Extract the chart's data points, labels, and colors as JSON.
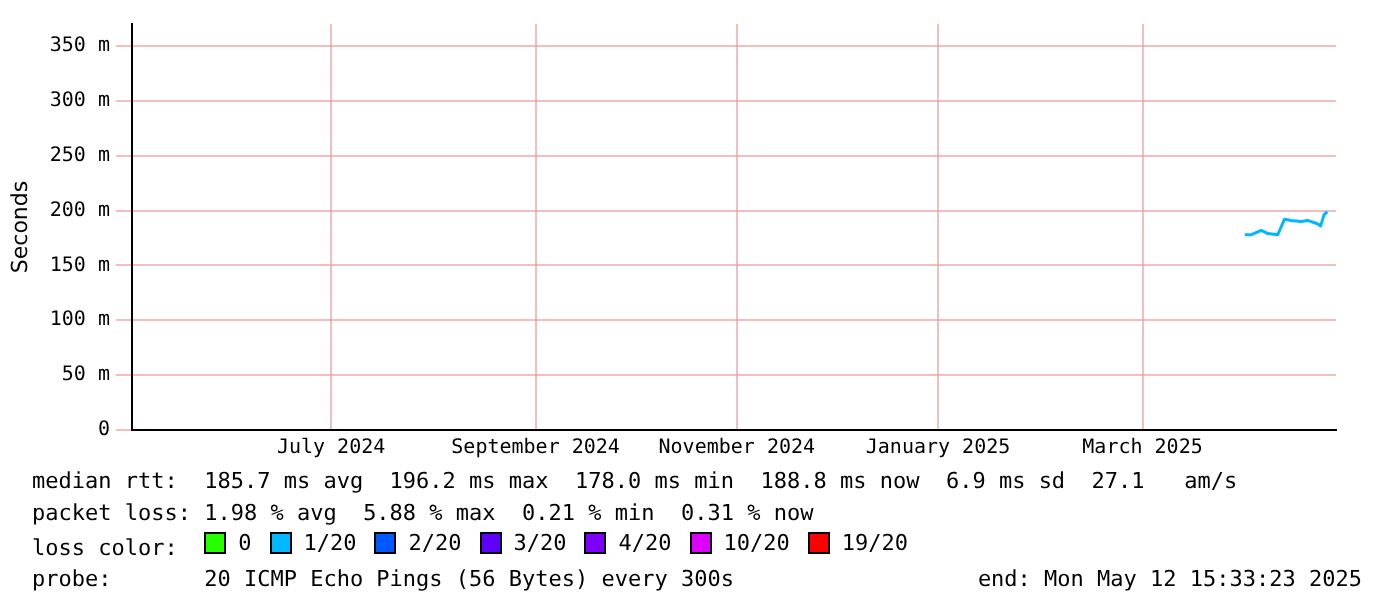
{
  "chart_data": {
    "type": "line",
    "ylabel": "Seconds",
    "xlim": [
      "2024-05-12T15:33",
      "2025-05-12T15:33"
    ],
    "xticks": [
      {
        "value": "2024-07-12",
        "label": "July 2024"
      },
      {
        "value": "2024-09-12",
        "label": "September 2024"
      },
      {
        "value": "2024-11-12",
        "label": "November 2024"
      },
      {
        "value": "2025-01-12",
        "label": "January 2025"
      },
      {
        "value": "2025-03-15",
        "label": "March 2025"
      }
    ],
    "ylim": [
      0,
      370
    ],
    "yticks": [
      0,
      {
        "value": 50,
        "label": "50 m"
      },
      {
        "value": 100,
        "label": "100 m"
      },
      {
        "value": 150,
        "label": "150 m"
      },
      {
        "value": 200,
        "label": "200 m"
      },
      {
        "value": 250,
        "label": "250 m"
      },
      {
        "value": 300,
        "label": "300 m"
      },
      {
        "value": 350,
        "label": "350 m"
      }
    ],
    "x": [
      "2025-04-15",
      "2025-04-17",
      "2025-04-20",
      "2025-04-22",
      "2025-04-25",
      "2025-04-26",
      "2025-04-27",
      "2025-04-29",
      "2025-05-02",
      "2025-05-04",
      "2025-05-07",
      "2025-05-08",
      "2025-05-09",
      "2025-05-10"
    ],
    "series": [
      {
        "name": "0",
        "color": "#26ff00",
        "values": [
          null,
          null,
          null,
          null,
          null,
          null,
          null,
          null,
          null,
          null,
          null,
          null,
          null,
          null
        ]
      },
      {
        "name": "1/20",
        "color": "#00b8ff",
        "values": [
          178,
          178,
          182,
          179,
          178,
          185,
          192,
          191,
          190,
          191,
          188,
          186,
          196,
          199
        ]
      },
      {
        "name": "2/20",
        "color": "#0059ff",
        "values": [
          null,
          null,
          null,
          null,
          null,
          null,
          null,
          null,
          null,
          null,
          null,
          null,
          null,
          null
        ]
      },
      {
        "name": "3/20",
        "color": "#5e00ff",
        "values": [
          null,
          null,
          null,
          null,
          null,
          null,
          null,
          null,
          null,
          null,
          null,
          null,
          null,
          null
        ]
      },
      {
        "name": "4/20",
        "color": "#7e00ff",
        "values": [
          null,
          null,
          null,
          null,
          null,
          null,
          null,
          null,
          null,
          null,
          null,
          null,
          null,
          null
        ]
      },
      {
        "name": "10/20",
        "color": "#dd00ff",
        "values": [
          null,
          null,
          null,
          null,
          null,
          null,
          null,
          null,
          null,
          null,
          null,
          null,
          null,
          null
        ]
      },
      {
        "name": "19/20",
        "color": "#ff0000",
        "values": [
          null,
          null,
          null,
          null,
          null,
          null,
          null,
          null,
          null,
          null,
          null,
          null,
          null,
          null
        ]
      }
    ],
    "legend": "bottom",
    "legend_title": "loss color:",
    "grid": true,
    "marker": "none",
    "line_style": "solid",
    "annotations": [
      "median rtt:  185.7 ms avg  196.2 ms max  178.0 ms min  188.8 ms now  6.9 ms sd  27.1   am/s",
      "packet loss: 1.98 % avg  5.88 % max  0.21 % min  0.31 % now",
      "probe:       20 ICMP Echo Pings (56 Bytes) every 300s",
      "end: Mon May 12 15:33:23 2025"
    ]
  }
}
